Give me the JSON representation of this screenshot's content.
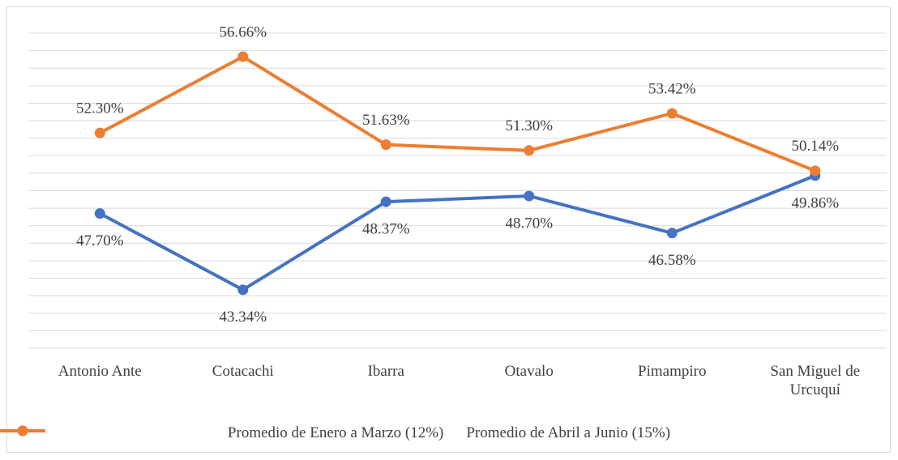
{
  "chart_data": {
    "type": "line",
    "categories": [
      "Antonio Ante",
      "Cotacachi",
      "Ibarra",
      "Otavalo",
      "Pimampiro",
      "San Miguel de Urcuquí"
    ],
    "series": [
      {
        "name": "Promedio de Enero a Marzo (12%)",
        "color": "#4472c4",
        "values": [
          47.7,
          43.34,
          48.37,
          48.7,
          46.58,
          49.86
        ],
        "value_labels": [
          "47.70%",
          "43.34%",
          "48.37%",
          "48.70%",
          "46.58%",
          "49.86%"
        ]
      },
      {
        "name": "Promedio de Abril a Junio (15%)",
        "color": "#ed7d31",
        "values": [
          52.3,
          56.66,
          51.63,
          51.3,
          53.42,
          50.14
        ],
        "value_labels": [
          "52.30%",
          "56.66%",
          "51.63%",
          "51.30%",
          "53.42%",
          "50.14%"
        ]
      }
    ],
    "ylim": [
      40,
      58
    ],
    "yticks": [
      40,
      41,
      42,
      43,
      44,
      45,
      46,
      47,
      48,
      49,
      50,
      51,
      52,
      53,
      54,
      55,
      56,
      57,
      58
    ],
    "grid": true,
    "legend": "bottom"
  }
}
